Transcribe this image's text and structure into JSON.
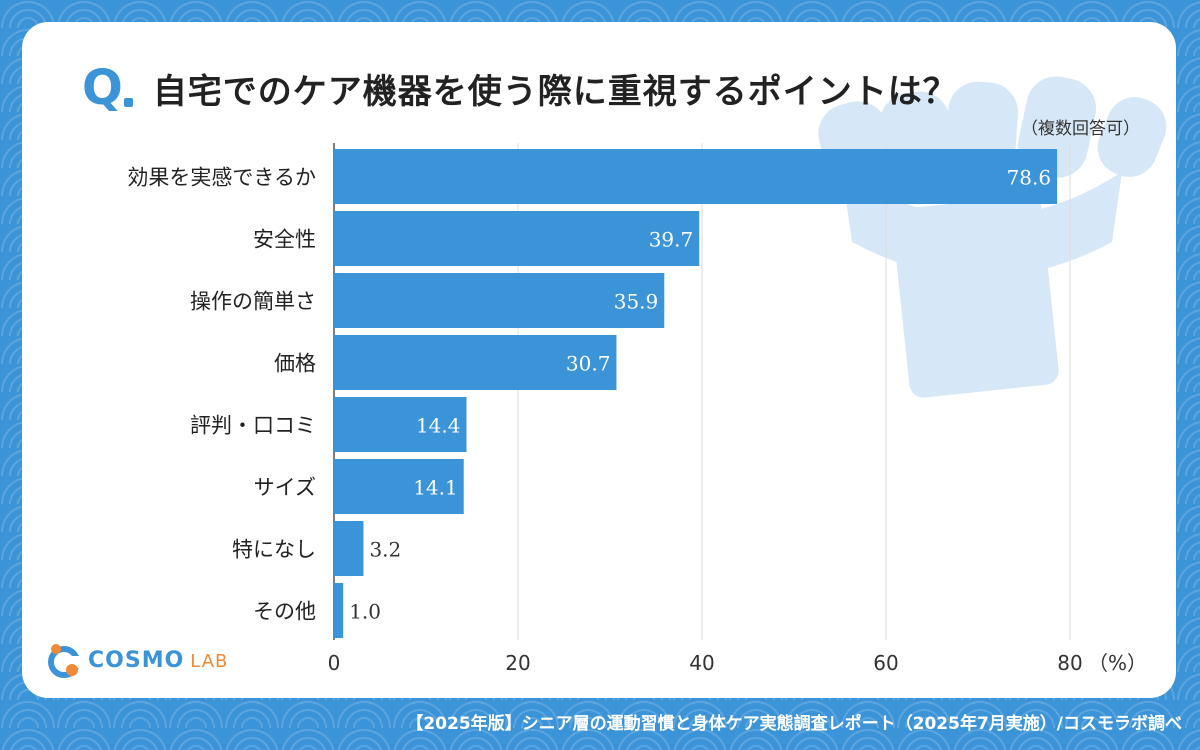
{
  "title": {
    "q_mark": "Q",
    "text": "自宅でのケア機器を使う際に重視するポイントは？",
    "note": "（複数回答可）"
  },
  "logo": {
    "brand": "COSMO",
    "lab": "LAB"
  },
  "footer": "【2025年版】シニア層の運動習慣と身体ケア実態調査レポート（2025年7月実施）/コスモラボ調べ",
  "colors": {
    "bar": "#3b93d8",
    "background": "#3b93d8",
    "grid": "#dddddd"
  },
  "chart_data": {
    "type": "bar",
    "orientation": "horizontal",
    "categories": [
      "効果を実感できるか",
      "安全性",
      "操作の簡単さ",
      "価格",
      "評判・口コミ",
      "サイズ",
      "特になし",
      "その他"
    ],
    "values": [
      78.6,
      39.7,
      35.9,
      30.7,
      14.4,
      14.1,
      3.2,
      1.0
    ],
    "value_labels": [
      "78.6",
      "39.7",
      "35.9",
      "30.7",
      "14.4",
      "14.1",
      "3.2",
      "1.0"
    ],
    "x_ticks": [
      "0",
      "20",
      "40",
      "60",
      "80"
    ],
    "x_unit": "（%）",
    "xlim": [
      0,
      80
    ],
    "grid": true
  }
}
